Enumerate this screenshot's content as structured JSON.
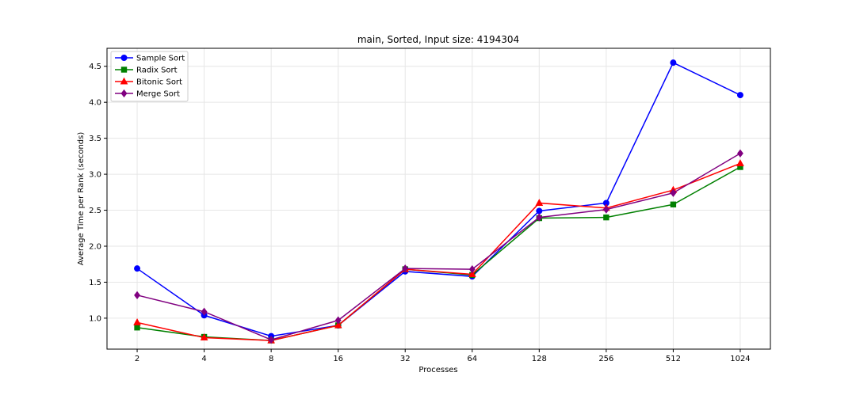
{
  "chart_data": {
    "type": "line",
    "title": "main, Sorted, Input size: 4194304",
    "xlabel": "Processes",
    "ylabel": "Average Time per Rank (seconds)",
    "x": [
      "2",
      "4",
      "8",
      "16",
      "32",
      "64",
      "128",
      "256",
      "512",
      "1024"
    ],
    "ylim": [
      0.57,
      4.75
    ],
    "yticks": [
      "1.0",
      "1.5",
      "2.0",
      "2.5",
      "3.0",
      "3.5",
      "4.0",
      "4.5"
    ],
    "grid": true,
    "legend_position": "top-left",
    "series": [
      {
        "name": "Sample Sort",
        "color": "#0000ff",
        "marker": "circle",
        "values": [
          1.69,
          1.04,
          0.75,
          0.9,
          1.65,
          1.58,
          2.49,
          2.6,
          4.55,
          4.1
        ]
      },
      {
        "name": "Radix Sort",
        "color": "#008000",
        "marker": "square",
        "values": [
          0.87,
          0.74,
          0.69,
          0.9,
          1.68,
          1.6,
          2.39,
          2.4,
          2.58,
          3.1
        ]
      },
      {
        "name": "Bitonic Sort",
        "color": "#ff0000",
        "marker": "triangle",
        "values": [
          0.94,
          0.73,
          0.69,
          0.9,
          1.68,
          1.61,
          2.6,
          2.53,
          2.78,
          3.15
        ]
      },
      {
        "name": "Merge Sort",
        "color": "#800080",
        "marker": "diamond",
        "values": [
          1.32,
          1.09,
          0.7,
          0.97,
          1.69,
          1.68,
          2.4,
          2.51,
          2.74,
          3.29
        ]
      }
    ]
  }
}
